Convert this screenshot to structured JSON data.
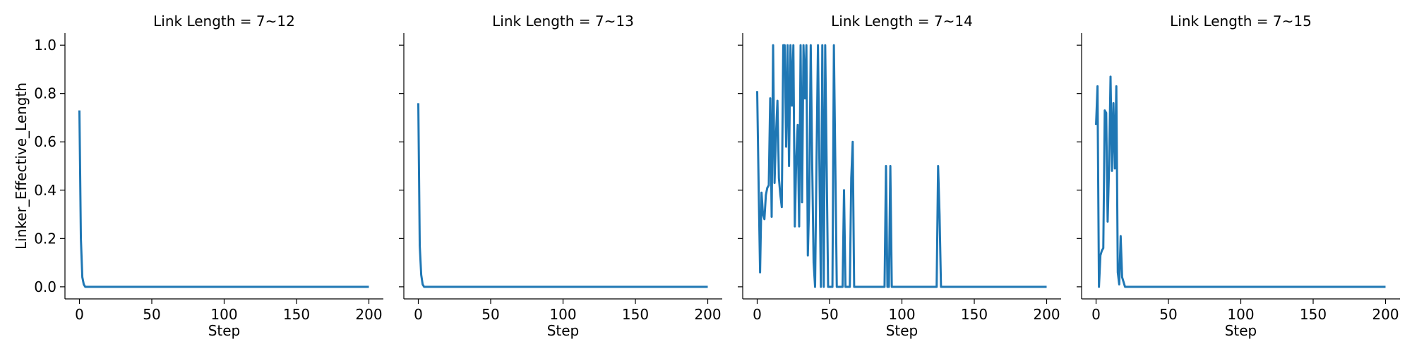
{
  "colors": {
    "series": "#1f77b4",
    "axis": "#000000",
    "background": "#ffffff"
  },
  "chart_data": [
    {
      "type": "line",
      "title": "Link Length = 7~12",
      "xlabel": "Step",
      "ylabel": "Linker_Effective_Length",
      "xlim": [
        -10,
        210
      ],
      "ylim": [
        -0.05,
        1.05
      ],
      "xticks": [
        0,
        50,
        100,
        150,
        200
      ],
      "xtick_labels": [
        "0",
        "50",
        "100",
        "150",
        "200"
      ],
      "yticks": [
        0.0,
        0.2,
        0.4,
        0.6,
        0.8,
        1.0
      ],
      "ytick_labels": [
        "0.0",
        "0.2",
        "0.4",
        "0.6",
        "0.8",
        "1.0"
      ],
      "grid": false,
      "series": [
        {
          "x": [
            0,
            1,
            2,
            3,
            4,
            5,
            10,
            50,
            100,
            150,
            200
          ],
          "y": [
            0.73,
            0.2,
            0.04,
            0.01,
            0.0,
            0.0,
            0.0,
            0.0,
            0.0,
            0.0,
            0.0
          ]
        }
      ]
    },
    {
      "type": "line",
      "title": "Link Length = 7~13",
      "xlabel": "Step",
      "ylabel": "",
      "xlim": [
        -10,
        210
      ],
      "ylim": [
        -0.05,
        1.05
      ],
      "xticks": [
        0,
        50,
        100,
        150,
        200
      ],
      "xtick_labels": [
        "0",
        "50",
        "100",
        "150",
        "200"
      ],
      "yticks": [
        0.0,
        0.2,
        0.4,
        0.6,
        0.8,
        1.0
      ],
      "ytick_labels": [],
      "grid": false,
      "series": [
        {
          "x": [
            0,
            1,
            2,
            3,
            4,
            5,
            10,
            50,
            100,
            150,
            200
          ],
          "y": [
            0.76,
            0.17,
            0.05,
            0.01,
            0.0,
            0.0,
            0.0,
            0.0,
            0.0,
            0.0,
            0.0
          ]
        }
      ]
    },
    {
      "type": "line",
      "title": "Link Length = 7~14",
      "xlabel": "Step",
      "ylabel": "",
      "xlim": [
        -10,
        210
      ],
      "ylim": [
        -0.05,
        1.05
      ],
      "xticks": [
        0,
        50,
        100,
        150,
        200
      ],
      "xtick_labels": [
        "0",
        "50",
        "100",
        "150",
        "200"
      ],
      "yticks": [
        0.0,
        0.2,
        0.4,
        0.6,
        0.8,
        1.0
      ],
      "ytick_labels": [],
      "grid": false,
      "series": [
        {
          "x": [
            0,
            1,
            2,
            3,
            4,
            5,
            6,
            7,
            8,
            9,
            10,
            11,
            12,
            13,
            14,
            15,
            16,
            17,
            18,
            19,
            20,
            21,
            22,
            23,
            24,
            25,
            26,
            27,
            28,
            29,
            30,
            31,
            32,
            33,
            34,
            35,
            36,
            37,
            38,
            39,
            40,
            41,
            42,
            43,
            44,
            45,
            46,
            47,
            48,
            49,
            50,
            51,
            52,
            53,
            54,
            55,
            56,
            57,
            58,
            59,
            60,
            61,
            62,
            63,
            64,
            65,
            66,
            67,
            68,
            69,
            70,
            71,
            72,
            80,
            88,
            89,
            90,
            91,
            92,
            93,
            94,
            100,
            110,
            124,
            125,
            126,
            127,
            130,
            150,
            200
          ],
          "y": [
            0.81,
            0.42,
            0.06,
            0.39,
            0.3,
            0.28,
            0.38,
            0.41,
            0.42,
            0.78,
            0.29,
            1.0,
            0.43,
            0.63,
            0.77,
            0.45,
            0.38,
            0.33,
            1.0,
            1.0,
            0.58,
            1.0,
            0.5,
            1.0,
            0.75,
            1.0,
            0.25,
            0.53,
            0.67,
            0.25,
            1.0,
            0.35,
            1.0,
            0.78,
            1.0,
            0.13,
            0.37,
            1.0,
            0.51,
            0.1,
            0.0,
            0.52,
            1.0,
            0.5,
            0.0,
            1.0,
            0.0,
            1.0,
            0.5,
            0.0,
            0.0,
            0.0,
            0.0,
            1.0,
            0.5,
            0.0,
            0.0,
            0.0,
            0.0,
            0.0,
            0.4,
            0.0,
            0.0,
            0.0,
            0.0,
            0.45,
            0.6,
            0.0,
            0.0,
            0.0,
            0.0,
            0.0,
            0.0,
            0.0,
            0.0,
            0.5,
            0.0,
            0.0,
            0.5,
            0.0,
            0.0,
            0.0,
            0.0,
            0.0,
            0.5,
            0.3,
            0.0,
            0.0,
            0.0,
            0.0
          ]
        }
      ]
    },
    {
      "type": "line",
      "title": "Link Length = 7~15",
      "xlabel": "Step",
      "ylabel": "",
      "xlim": [
        -10,
        210
      ],
      "ylim": [
        -0.05,
        1.05
      ],
      "xticks": [
        0,
        50,
        100,
        150,
        200
      ],
      "xtick_labels": [
        "0",
        "50",
        "100",
        "150",
        "200"
      ],
      "yticks": [
        0.0,
        0.2,
        0.4,
        0.6,
        0.8,
        1.0
      ],
      "ytick_labels": [],
      "grid": false,
      "series": [
        {
          "x": [
            0,
            1,
            2,
            3,
            4,
            5,
            6,
            7,
            8,
            9,
            10,
            11,
            12,
            13,
            14,
            15,
            16,
            17,
            18,
            19,
            20,
            21,
            22,
            23,
            24,
            25,
            30,
            50,
            100,
            150,
            200
          ],
          "y": [
            0.67,
            0.83,
            0.0,
            0.13,
            0.15,
            0.16,
            0.73,
            0.72,
            0.27,
            0.5,
            0.87,
            0.48,
            0.76,
            0.49,
            0.83,
            0.06,
            0.01,
            0.21,
            0.04,
            0.02,
            0.0,
            0.0,
            0.0,
            0.0,
            0.0,
            0.0,
            0.0,
            0.0,
            0.0,
            0.0,
            0.0
          ]
        }
      ]
    }
  ]
}
